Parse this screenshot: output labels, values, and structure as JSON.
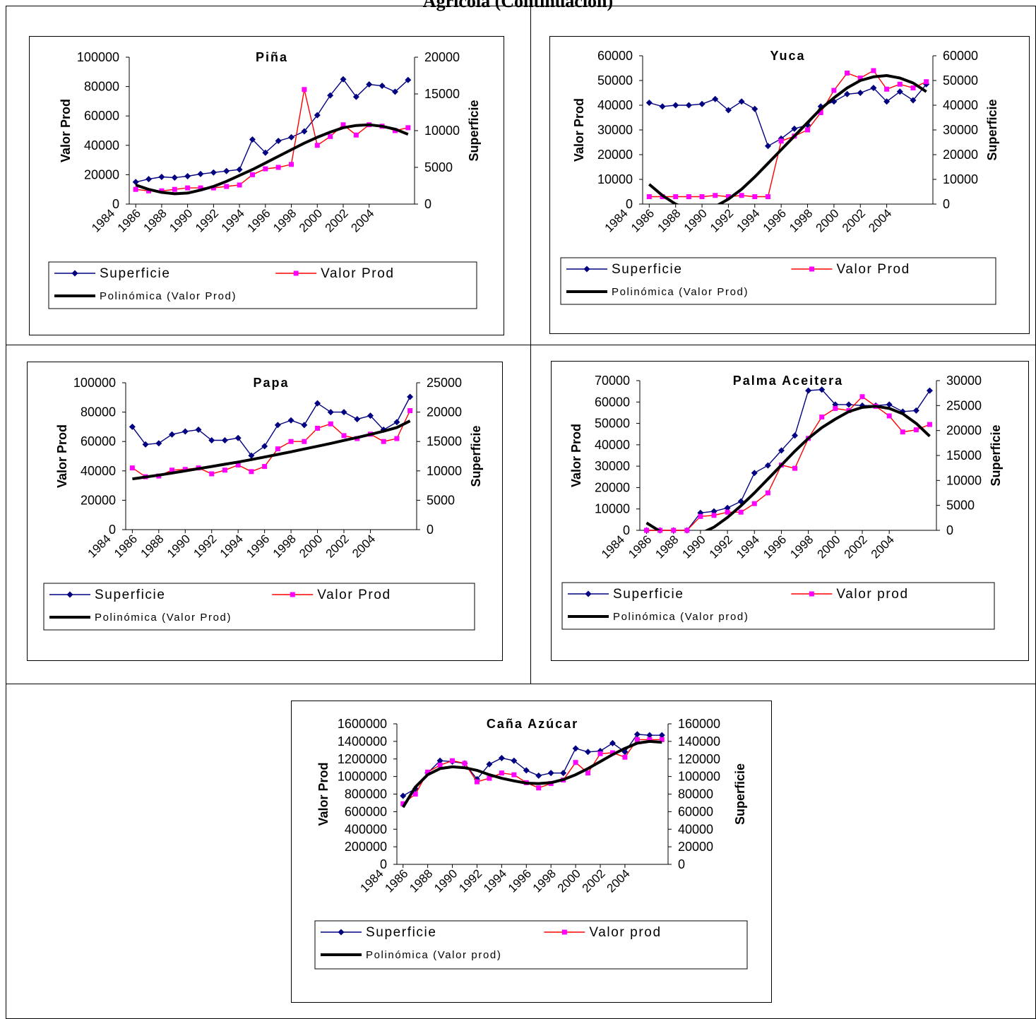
{
  "page_title": "Agrícola (Continuación)",
  "legend_labels": {
    "superficie": "Superficie",
    "poly_prefix": "Polinómica"
  },
  "chart_data": [
    {
      "type": "line",
      "title": "Piña",
      "ylabel": "Valor Prod",
      "y2label": "Superficie",
      "ylim": [
        0,
        100000
      ],
      "y2lim": [
        0,
        20000
      ],
      "yticks": [
        "0",
        "20000",
        "40000",
        "60000",
        "80000",
        "100000"
      ],
      "y2ticks": [
        "0",
        "5000",
        "10000",
        "15000",
        "20000"
      ],
      "x_tick_labels": [
        "1984",
        "1986",
        "1988",
        "1990",
        "1992",
        "1994",
        "1996",
        "1998",
        "2000",
        "2002",
        "2004"
      ],
      "x": [
        1986,
        1987,
        1988,
        1989,
        1990,
        1991,
        1992,
        1993,
        1994,
        1995,
        1996,
        1997,
        1998,
        1999,
        2000,
        2001,
        2002,
        2003,
        2004,
        2005,
        2006,
        2007
      ],
      "series": [
        {
          "name": "Superficie",
          "axis": "right",
          "color": "#000080",
          "marker": "diamond",
          "values": [
            3000,
            3400,
            3700,
            3600,
            3800,
            4100,
            4300,
            4500,
            4700,
            8800,
            7000,
            8600,
            9100,
            9900,
            12100,
            14800,
            17000,
            14600,
            16300,
            16100,
            15300,
            16900
          ]
        },
        {
          "name": "Valor Prod",
          "axis": "left",
          "color": "#FF0000",
          "marker_color": "#FF00FF",
          "marker": "square",
          "values": [
            10000,
            9000,
            9000,
            10000,
            11000,
            11000,
            11000,
            12000,
            13000,
            20000,
            24000,
            25000,
            27000,
            78000,
            40000,
            46000,
            54000,
            47000,
            54000,
            53000,
            50000,
            52000
          ]
        },
        {
          "name": "Polinómica (Valor Prod)",
          "axis": "left",
          "color": "#000000",
          "marker": "none",
          "trend": true,
          "values": [
            13000,
            10000,
            8000,
            7000,
            7500,
            9500,
            12000,
            15500,
            19500,
            23500,
            28000,
            32500,
            37000,
            41500,
            45500,
            49000,
            52000,
            53500,
            54000,
            53000,
            51000,
            47500
          ]
        }
      ],
      "legend": [
        {
          "label": "Superficie",
          "series": 0
        },
        {
          "label": "Valor Prod",
          "series": 1
        },
        {
          "label": "Polinómica (Valor Prod)",
          "series": 2
        }
      ]
    },
    {
      "type": "line",
      "title": "Yuca",
      "ylabel": "Valor Prod",
      "y2label": "Superficie",
      "ylim": [
        0,
        60000
      ],
      "y2lim": [
        0,
        60000
      ],
      "yticks": [
        "0",
        "10000",
        "20000",
        "30000",
        "40000",
        "50000",
        "60000"
      ],
      "y2ticks": [
        "0",
        "10000",
        "20000",
        "30000",
        "40000",
        "50000",
        "60000"
      ],
      "x_tick_labels": [
        "1984",
        "1986",
        "1988",
        "1990",
        "1992",
        "1994",
        "1996",
        "1998",
        "2000",
        "2002",
        "2004"
      ],
      "x": [
        1986,
        1987,
        1988,
        1989,
        1990,
        1991,
        1992,
        1993,
        1994,
        1995,
        1996,
        1997,
        1998,
        1999,
        2000,
        2001,
        2002,
        2003,
        2004,
        2005,
        2006,
        2007
      ],
      "series": [
        {
          "name": "Superficie",
          "axis": "right",
          "color": "#000080",
          "marker": "diamond",
          "values": [
            41000,
            39500,
            40000,
            40000,
            40500,
            42500,
            38000,
            41500,
            38500,
            23500,
            26500,
            30500,
            32000,
            39500,
            41500,
            44500,
            45000,
            47000,
            41500,
            45500,
            42000,
            48500
          ]
        },
        {
          "name": "Valor Prod",
          "axis": "left",
          "color": "#FF0000",
          "marker_color": "#FF00FF",
          "marker": "square",
          "values": [
            3000,
            3000,
            3000,
            3000,
            3000,
            3500,
            3000,
            3500,
            3000,
            3000,
            25500,
            27500,
            30000,
            37000,
            46000,
            53000,
            51000,
            54000,
            46500,
            48500,
            47000,
            49500
          ]
        },
        {
          "name": "Polinómica (Valor Prod)",
          "axis": "left",
          "color": "#000000",
          "marker": "none",
          "trend": true,
          "values": [
            8000,
            3500,
            0,
            -2000,
            -2500,
            -1000,
            2000,
            6000,
            11000,
            16500,
            22000,
            27500,
            33000,
            38500,
            43000,
            47000,
            50000,
            51500,
            52000,
            51000,
            49000,
            45500
          ]
        }
      ],
      "legend": [
        {
          "label": "Superficie",
          "series": 0
        },
        {
          "label": "Valor Prod",
          "series": 1
        },
        {
          "label": "Polinómica (Valor Prod)",
          "series": 2
        }
      ]
    },
    {
      "type": "line",
      "title": "Papa",
      "ylabel": "Valor Prod",
      "y2label": "Superficie",
      "ylim": [
        0,
        100000
      ],
      "y2lim": [
        0,
        25000
      ],
      "yticks": [
        "0",
        "20000",
        "40000",
        "60000",
        "80000",
        "100000"
      ],
      "y2ticks": [
        "0",
        "5000",
        "10000",
        "15000",
        "20000",
        "25000"
      ],
      "x_tick_labels": [
        "1984",
        "1986",
        "1988",
        "1990",
        "1992",
        "1994",
        "1996",
        "1998",
        "2000",
        "2002",
        "2004"
      ],
      "x": [
        1986,
        1987,
        1988,
        1989,
        1990,
        1991,
        1992,
        1993,
        1994,
        1995,
        1996,
        1997,
        1998,
        1999,
        2000,
        2001,
        2002,
        2003,
        2004,
        2005,
        2006,
        2007
      ],
      "series": [
        {
          "name": "Superficie",
          "axis": "right",
          "color": "#000080",
          "marker": "diamond",
          "values": [
            17500,
            14500,
            14700,
            16200,
            16700,
            17000,
            15200,
            15200,
            15600,
            12600,
            14200,
            17800,
            18600,
            17800,
            21500,
            20000,
            20000,
            18800,
            19400,
            17000,
            18300,
            22600
          ]
        },
        {
          "name": "Valor Prod",
          "axis": "left",
          "color": "#FF0000",
          "marker_color": "#FF00FF",
          "marker": "square",
          "values": [
            42000,
            36000,
            36500,
            40500,
            41000,
            42000,
            38000,
            40500,
            44000,
            39500,
            43000,
            55000,
            60000,
            60000,
            69000,
            72000,
            64000,
            62000,
            65000,
            60000,
            62000,
            81000
          ]
        },
        {
          "name": "Polinómica (Valor Prod)",
          "axis": "left",
          "color": "#000000",
          "marker": "none",
          "trend": true,
          "values": [
            34500,
            35800,
            37100,
            38500,
            40000,
            41500,
            43000,
            44500,
            46000,
            47700,
            49400,
            51200,
            53000,
            54900,
            56800,
            58700,
            60700,
            62700,
            64800,
            67000,
            69500,
            74000
          ]
        }
      ],
      "legend": [
        {
          "label": "Superficie",
          "series": 0
        },
        {
          "label": "Valor Prod",
          "series": 1
        },
        {
          "label": "Polinómica (Valor Prod)",
          "series": 2
        }
      ]
    },
    {
      "type": "line",
      "title": "Palma Aceitera",
      "ylabel": "Valor Prod",
      "y2label": "Superficie",
      "ylim": [
        0,
        70000
      ],
      "y2lim": [
        0,
        30000
      ],
      "yticks": [
        "0",
        "10000",
        "20000",
        "30000",
        "40000",
        "50000",
        "60000",
        "70000"
      ],
      "y2ticks": [
        "0",
        "5000",
        "10000",
        "15000",
        "20000",
        "25000",
        "30000"
      ],
      "x_tick_labels": [
        "1984",
        "1986",
        "1988",
        "1990",
        "1992",
        "1994",
        "1996",
        "1998",
        "2000",
        "2002",
        "2004"
      ],
      "x": [
        1986,
        1987,
        1988,
        1989,
        1990,
        1991,
        1992,
        1993,
        1994,
        1995,
        1996,
        1997,
        1998,
        1999,
        2000,
        2001,
        2002,
        2003,
        2004,
        2005,
        2006,
        2007
      ],
      "series": [
        {
          "name": "Superficie",
          "axis": "right",
          "color": "#000080",
          "marker": "diamond",
          "values": [
            0,
            0,
            0,
            0,
            3500,
            3800,
            4500,
            5800,
            11500,
            13000,
            16000,
            19000,
            28000,
            28200,
            25200,
            25200,
            25000,
            25000,
            25200,
            23800,
            24000,
            28000
          ]
        },
        {
          "name": "Valor prod",
          "axis": "left",
          "color": "#FF0000",
          "marker_color": "#FF00FF",
          "marker": "square",
          "values": [
            0,
            0,
            0,
            0,
            6500,
            7000,
            8500,
            8500,
            12500,
            17500,
            30500,
            29000,
            43000,
            53000,
            57000,
            56000,
            62500,
            58000,
            53500,
            46000,
            47000,
            49500
          ]
        },
        {
          "name": "Polinómica (Valor prod)",
          "axis": "left",
          "color": "#000000",
          "marker": "none",
          "trend": true,
          "values": [
            3500,
            -500,
            -2500,
            -3000,
            -1500,
            1500,
            6000,
            11500,
            17500,
            24000,
            30500,
            37000,
            43000,
            48000,
            52000,
            55500,
            57500,
            58000,
            57000,
            54500,
            50000,
            44000
          ]
        }
      ],
      "legend": [
        {
          "label": "Superficie",
          "series": 0
        },
        {
          "label": "Valor prod",
          "series": 1
        },
        {
          "label": "Polinómica (Valor prod)",
          "series": 2
        }
      ]
    },
    {
      "type": "line",
      "title": "Caña Azúcar",
      "ylabel": "Valor Prod",
      "y2label": "Superficie",
      "ylim": [
        0,
        1600000
      ],
      "y2lim": [
        0,
        160000
      ],
      "yticks": [
        "0",
        "200000",
        "400000",
        "600000",
        "800000",
        "1000000",
        "1200000",
        "1400000",
        "1600000"
      ],
      "y2ticks": [
        "0",
        "20000",
        "40000",
        "60000",
        "80000",
        "100000",
        "120000",
        "140000",
        "160000"
      ],
      "x_tick_labels": [
        "1984",
        "1986",
        "1988",
        "1990",
        "1992",
        "1994",
        "1996",
        "1998",
        "2000",
        "2002",
        "2004"
      ],
      "x": [
        1986,
        1987,
        1988,
        1989,
        1990,
        1991,
        1992,
        1993,
        1994,
        1995,
        1996,
        1997,
        1998,
        1999,
        2000,
        2001,
        2002,
        2003,
        2004,
        2005,
        2006,
        2007
      ],
      "series": [
        {
          "name": "Superficie",
          "axis": "right",
          "color": "#000080",
          "marker": "diamond",
          "values": [
            78000,
            86000,
            104000,
            118000,
            117000,
            115000,
            97000,
            114000,
            121000,
            118000,
            107000,
            101000,
            104000,
            104000,
            132000,
            128000,
            129000,
            138000,
            128000,
            148000,
            147000,
            147000
          ]
        },
        {
          "name": "Valor prod",
          "axis": "left",
          "color": "#FF0000",
          "marker_color": "#FF00FF",
          "marker": "square",
          "values": [
            690000,
            800000,
            1050000,
            1130000,
            1180000,
            1150000,
            940000,
            980000,
            1040000,
            1020000,
            930000,
            870000,
            920000,
            960000,
            1160000,
            1040000,
            1260000,
            1270000,
            1220000,
            1420000,
            1420000,
            1420000
          ]
        },
        {
          "name": "Polinómica (Valor prod)",
          "axis": "left",
          "color": "#000000",
          "marker": "none",
          "trend": true,
          "values": [
            650000,
            880000,
            1020000,
            1090000,
            1110000,
            1100000,
            1070000,
            1020000,
            980000,
            950000,
            925000,
            920000,
            930000,
            965000,
            1020000,
            1090000,
            1170000,
            1250000,
            1320000,
            1380000,
            1400000,
            1390000
          ]
        }
      ],
      "legend": [
        {
          "label": "Superficie",
          "series": 0
        },
        {
          "label": "Valor prod",
          "series": 1
        },
        {
          "label": "Polinómica (Valor prod)",
          "series": 2
        }
      ]
    }
  ]
}
